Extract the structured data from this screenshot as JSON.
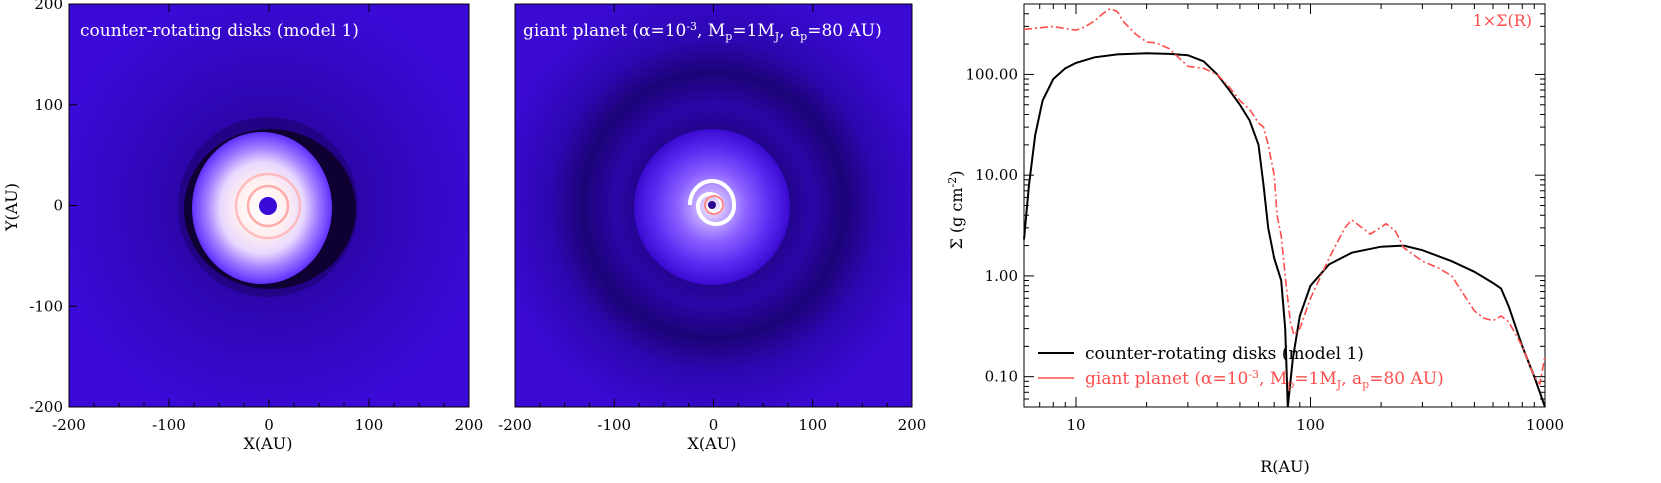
{
  "chart_data": [
    {
      "type": "heatmap",
      "title": "counter-rotating disks (model 1)",
      "xlabel": "X(AU)",
      "ylabel": "Y(AU)",
      "xlim": [
        -200,
        200
      ],
      "ylim": [
        -200,
        200
      ],
      "xticks": [
        "-200",
        "-100",
        "0",
        "100",
        "200"
      ],
      "yticks": [
        "200",
        "100",
        "0",
        "-100",
        "-200"
      ],
      "colors": {
        "background": "#3a0ad6",
        "dark_gap": "#10003a",
        "bright": "#ffe6e6",
        "ring": "#ff9a9a"
      }
    },
    {
      "type": "heatmap",
      "title_parts": {
        "t1": "giant planet (α=10",
        "t2": "-3",
        "t3": ", M",
        "t4": "p",
        "t5": "=1M",
        "t6": "J",
        "t7": ", a",
        "t8": "p",
        "t9": "=80 AU)"
      },
      "xlabel": "X(AU)",
      "xlim": [
        -200,
        200
      ],
      "ylim": [
        -200,
        200
      ],
      "xticks": [
        "-200",
        "-100",
        "0",
        "100",
        "200"
      ],
      "colors": {
        "background": "#3a0ad6",
        "dark_gap": "#12003e",
        "bright": "#ffffff",
        "ring": "#ff9a9a"
      }
    },
    {
      "type": "line",
      "annotation": "1×Σ(R)",
      "xlabel": "R(AU)",
      "ylabel_parts": {
        "a": "Σ (g cm",
        "b": "-2",
        "c": ")"
      },
      "xscale": "log",
      "yscale": "log",
      "xlim": [
        6,
        1000
      ],
      "ylim": [
        0.05,
        500
      ],
      "xticks": [
        {
          "v": 10,
          "label": "10"
        },
        {
          "v": 100,
          "label": "100"
        },
        {
          "v": 1000,
          "label": "1000"
        }
      ],
      "yticks": [
        {
          "v": 100,
          "label": "100.00"
        },
        {
          "v": 10,
          "label": "10.00"
        },
        {
          "v": 1,
          "label": "1.00"
        },
        {
          "v": 0.1,
          "label": "0.10"
        }
      ],
      "legend": {
        "s1": "counter-rotating disks (model 1)",
        "s2_parts": {
          "t1": "giant planet (α=10",
          "t2": "-3",
          "t3": ", M",
          "t4": "p",
          "t5": "=1M",
          "t6": "J",
          "t7": ", a",
          "t8": "p",
          "t9": "=80 AU)"
        }
      },
      "series": [
        {
          "color": "#000000",
          "style": "solid",
          "points": [
            [
              6,
              2.3
            ],
            [
              6.3,
              8
            ],
            [
              6.7,
              25
            ],
            [
              7.2,
              55
            ],
            [
              8,
              90
            ],
            [
              9,
              115
            ],
            [
              10,
              130
            ],
            [
              12,
              148
            ],
            [
              15,
              158
            ],
            [
              20,
              162
            ],
            [
              25,
              160
            ],
            [
              30,
              155
            ],
            [
              35,
              135
            ],
            [
              40,
              100
            ],
            [
              45,
              70
            ],
            [
              50,
              50
            ],
            [
              55,
              35
            ],
            [
              60,
              20
            ],
            [
              63,
              8
            ],
            [
              66,
              3
            ],
            [
              70,
              1.5
            ],
            [
              75,
              0.9
            ],
            [
              78,
              0.3
            ],
            [
              80,
              0.05
            ],
            [
              84,
              0.15
            ],
            [
              90,
              0.4
            ],
            [
              100,
              0.8
            ],
            [
              120,
              1.3
            ],
            [
              150,
              1.7
            ],
            [
              200,
              1.95
            ],
            [
              250,
              2.0
            ],
            [
              300,
              1.8
            ],
            [
              400,
              1.4
            ],
            [
              500,
              1.1
            ],
            [
              600,
              0.85
            ],
            [
              650,
              0.75
            ],
            [
              700,
              0.5
            ],
            [
              800,
              0.2
            ],
            [
              900,
              0.1
            ],
            [
              1000,
              0.05
            ]
          ]
        },
        {
          "color": "#ff4d4d",
          "style": "dashdot",
          "points": [
            [
              6,
              280
            ],
            [
              7,
              290
            ],
            [
              8,
              300
            ],
            [
              9,
              285
            ],
            [
              10,
              275
            ],
            [
              11,
              300
            ],
            [
              12,
              340
            ],
            [
              13,
              400
            ],
            [
              14,
              450
            ],
            [
              15,
              420
            ],
            [
              16,
              330
            ],
            [
              18,
              250
            ],
            [
              20,
              210
            ],
            [
              22,
              205
            ],
            [
              25,
              180
            ],
            [
              28,
              140
            ],
            [
              30,
              120
            ],
            [
              35,
              115
            ],
            [
              40,
              100
            ],
            [
              45,
              75
            ],
            [
              50,
              55
            ],
            [
              55,
              45
            ],
            [
              60,
              33
            ],
            [
              63,
              30
            ],
            [
              66,
              20
            ],
            [
              70,
              10
            ],
            [
              72,
              4
            ],
            [
              75,
              2.5
            ],
            [
              78,
              1.0
            ],
            [
              82,
              0.35
            ],
            [
              85,
              0.26
            ],
            [
              90,
              0.3
            ],
            [
              100,
              0.6
            ],
            [
              120,
              1.5
            ],
            [
              140,
              3.0
            ],
            [
              150,
              3.6
            ],
            [
              160,
              3.2
            ],
            [
              180,
              2.6
            ],
            [
              210,
              3.3
            ],
            [
              230,
              2.8
            ],
            [
              250,
              1.9
            ],
            [
              300,
              1.4
            ],
            [
              350,
              1.2
            ],
            [
              400,
              1.0
            ],
            [
              500,
              0.45
            ],
            [
              550,
              0.38
            ],
            [
              600,
              0.36
            ],
            [
              650,
              0.4
            ],
            [
              700,
              0.35
            ],
            [
              800,
              0.2
            ],
            [
              900,
              0.1
            ],
            [
              950,
              0.085
            ],
            [
              1000,
              0.16
            ]
          ]
        }
      ]
    }
  ]
}
